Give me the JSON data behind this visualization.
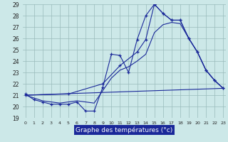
{
  "xlabel": "Graphe des températures (°c)",
  "ylim": [
    19,
    29
  ],
  "yticks": [
    19,
    20,
    21,
    22,
    23,
    24,
    25,
    26,
    27,
    28,
    29
  ],
  "xticks": [
    0,
    1,
    2,
    3,
    4,
    5,
    6,
    7,
    8,
    9,
    10,
    11,
    12,
    13,
    14,
    15,
    16,
    17,
    18,
    19,
    20,
    21,
    22,
    23
  ],
  "bg_color": "#cce8e8",
  "line_color": "#1a2899",
  "grid_color": "#99bbbb",
  "line1_x": [
    0,
    1,
    2,
    3,
    4,
    5,
    6,
    7,
    8,
    9,
    10,
    11,
    12,
    13,
    14,
    15,
    16,
    17,
    18,
    19,
    20,
    21,
    22,
    23
  ],
  "line1_y": [
    21.1,
    20.6,
    20.4,
    20.2,
    20.2,
    20.2,
    20.4,
    19.6,
    19.6,
    21.7,
    24.6,
    24.5,
    23.0,
    25.9,
    28.0,
    29.0,
    28.2,
    27.6,
    27.6,
    26.0,
    24.8,
    23.2,
    22.3,
    21.6
  ],
  "line2_x": [
    0,
    23
  ],
  "line2_y": [
    21.0,
    21.6
  ],
  "line3_x": [
    0,
    5,
    9,
    11,
    13,
    14,
    15,
    16,
    17,
    18,
    19,
    20,
    21,
    22,
    23
  ],
  "line3_y": [
    21.0,
    21.1,
    22.0,
    23.6,
    24.8,
    25.9,
    29.0,
    28.2,
    27.6,
    27.6,
    26.0,
    24.8,
    23.2,
    22.3,
    21.6
  ],
  "line4_x": [
    0,
    2,
    4,
    6,
    8,
    10,
    11,
    12,
    13,
    14,
    15,
    16,
    17,
    18,
    19,
    20,
    21,
    22,
    23
  ],
  "line4_y": [
    21.0,
    20.5,
    20.3,
    20.5,
    20.3,
    22.5,
    23.2,
    23.5,
    24.0,
    24.6,
    26.5,
    27.2,
    27.4,
    27.3,
    26.0,
    24.8,
    23.2,
    22.3,
    21.6
  ]
}
